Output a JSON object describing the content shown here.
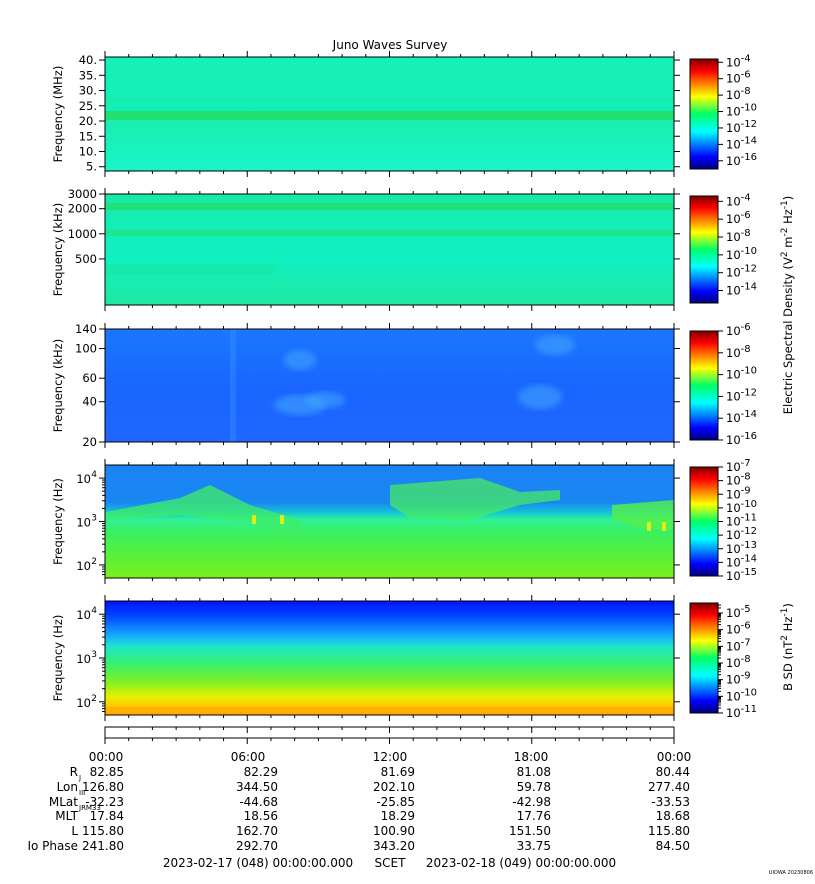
{
  "chart_data": {
    "type": "heatmap",
    "title": "Juno Waves Survey",
    "time_axis": {
      "tick_labels": [
        "00:00",
        "06:00",
        "12:00",
        "18:00",
        "00:00"
      ],
      "start_label": "2023-02-17 (048) 00:00:00.000",
      "frame_label": "SCET",
      "end_label": "2023-02-18 (049) 00:00:00.000"
    },
    "panels": [
      {
        "ylabel": "Frequency (MHz)",
        "yscale": "linear",
        "ylim": [
          3.6,
          41
        ],
        "yticks": [
          {
            "v": 40,
            "label": "40."
          },
          {
            "v": 35,
            "label": "35."
          },
          {
            "v": 30,
            "label": "30."
          },
          {
            "v": 25,
            "label": "25."
          },
          {
            "v": 20,
            "label": "20."
          },
          {
            "v": 15,
            "label": "15."
          },
          {
            "v": 10,
            "label": "10."
          },
          {
            "v": 5,
            "label": "5."
          }
        ],
        "yminor": [],
        "colorbar": {
          "exponents": [
            -4,
            -6,
            -8,
            -10,
            -12,
            -14,
            -16
          ],
          "range": [
            -17,
            -3.6
          ],
          "minor": false
        }
      },
      {
        "ylabel": "Frequency (kHz)",
        "yscale": "log",
        "ylim": [
          140,
          3000
        ],
        "yticks": [
          {
            "v": 3000,
            "label": "3000"
          },
          {
            "v": 2000,
            "label": "2000"
          },
          {
            "v": 1000,
            "label": "1000"
          },
          {
            "v": 500,
            "label": "500"
          }
        ],
        "yminor": [],
        "colorbar": {
          "exponents": [
            -4,
            -6,
            -8,
            -10,
            -12,
            -14
          ],
          "range": [
            -15.4,
            -3.4
          ],
          "minor": false
        }
      },
      {
        "ylabel": "Frequency (kHz)",
        "yscale": "log",
        "ylim": [
          20,
          140
        ],
        "yticks": [
          {
            "v": 140,
            "label": "140"
          },
          {
            "v": 100,
            "label": "100"
          },
          {
            "v": 60,
            "label": "60"
          },
          {
            "v": 40,
            "label": "40"
          },
          {
            "v": 20,
            "label": "20"
          }
        ],
        "yminor": [],
        "colorbar": {
          "exponents": [
            -6,
            -8,
            -10,
            -12,
            -14,
            -16
          ],
          "range": [
            -16,
            -6
          ],
          "minor": false
        }
      },
      {
        "ylabel": "Frequency (Hz)",
        "yscale": "log",
        "ylim": [
          50,
          20000
        ],
        "yticks": [
          {
            "v": 10000,
            "label": "10",
            "exp": "4"
          },
          {
            "v": 1000,
            "label": "10",
            "exp": "3"
          },
          {
            "v": 100,
            "label": "10",
            "exp": "2"
          }
        ],
        "yminor": [
          60,
          70,
          80,
          90,
          200,
          300,
          400,
          500,
          600,
          700,
          800,
          900,
          2000,
          3000,
          4000,
          5000,
          6000,
          7000,
          8000,
          9000
        ],
        "colorbar": {
          "exponents": [
            -7,
            -8,
            -9,
            -10,
            -11,
            -12,
            -13,
            -14,
            -15
          ],
          "range": [
            -15,
            -7
          ],
          "minor": false
        }
      },
      {
        "ylabel": "Frequency (Hz)",
        "yscale": "log",
        "ylim": [
          50,
          20000
        ],
        "yticks": [
          {
            "v": 10000,
            "label": "10",
            "exp": "4"
          },
          {
            "v": 1000,
            "label": "10",
            "exp": "3"
          },
          {
            "v": 100,
            "label": "10",
            "exp": "2"
          }
        ],
        "yminor": [
          60,
          70,
          80,
          90,
          200,
          300,
          400,
          500,
          600,
          700,
          800,
          900,
          2000,
          3000,
          4000,
          5000,
          6000,
          7000,
          8000,
          9000
        ],
        "colorbar": {
          "exponents": [
            -5,
            -6,
            -7,
            -8,
            -9,
            -10,
            -11
          ],
          "range": [
            -11,
            -4.4
          ],
          "minor": true
        }
      }
    ],
    "colorbar_labels": {
      "electric": {
        "base": "Electric Spectral Density (V",
        "sup1": "2",
        "mid1": " m",
        "sup2": "-2",
        "mid2": " Hz",
        "sup3": "-1",
        "end": ")"
      },
      "magnetic": {
        "base": "B SD (nT",
        "sup1": "2",
        "mid1": " Hz",
        "sup2": "-1",
        "end": ")"
      }
    },
    "ephemeris": {
      "columns": [
        "00:00",
        "06:00",
        "12:00",
        "18:00",
        "00:00"
      ],
      "rows": [
        {
          "label": "R",
          "sub": "J",
          "values": [
            "82.85",
            "82.29",
            "81.69",
            "81.08",
            "80.44"
          ]
        },
        {
          "label": "Lon",
          "sub": "III",
          "values": [
            "126.80",
            "344.50",
            "202.10",
            "59.78",
            "277.40"
          ]
        },
        {
          "label": "MLat",
          "sub": "JRM33",
          "values": [
            "-32.23",
            "-44.68",
            "-25.85",
            "-42.98",
            "-33.53"
          ]
        },
        {
          "label": "MLT",
          "sub": "",
          "values": [
            "17.84",
            "18.56",
            "18.29",
            "17.76",
            "18.68"
          ]
        },
        {
          "label": "L",
          "sub": "",
          "values": [
            "115.80",
            "162.70",
            "100.90",
            "151.50",
            "115.80"
          ]
        },
        {
          "label": "Io Phase",
          "sub": "",
          "values": [
            "241.80",
            "292.70",
            "343.20",
            "33.75",
            "84.50"
          ]
        }
      ]
    },
    "footer_mark": "UIOWA 20230806"
  }
}
